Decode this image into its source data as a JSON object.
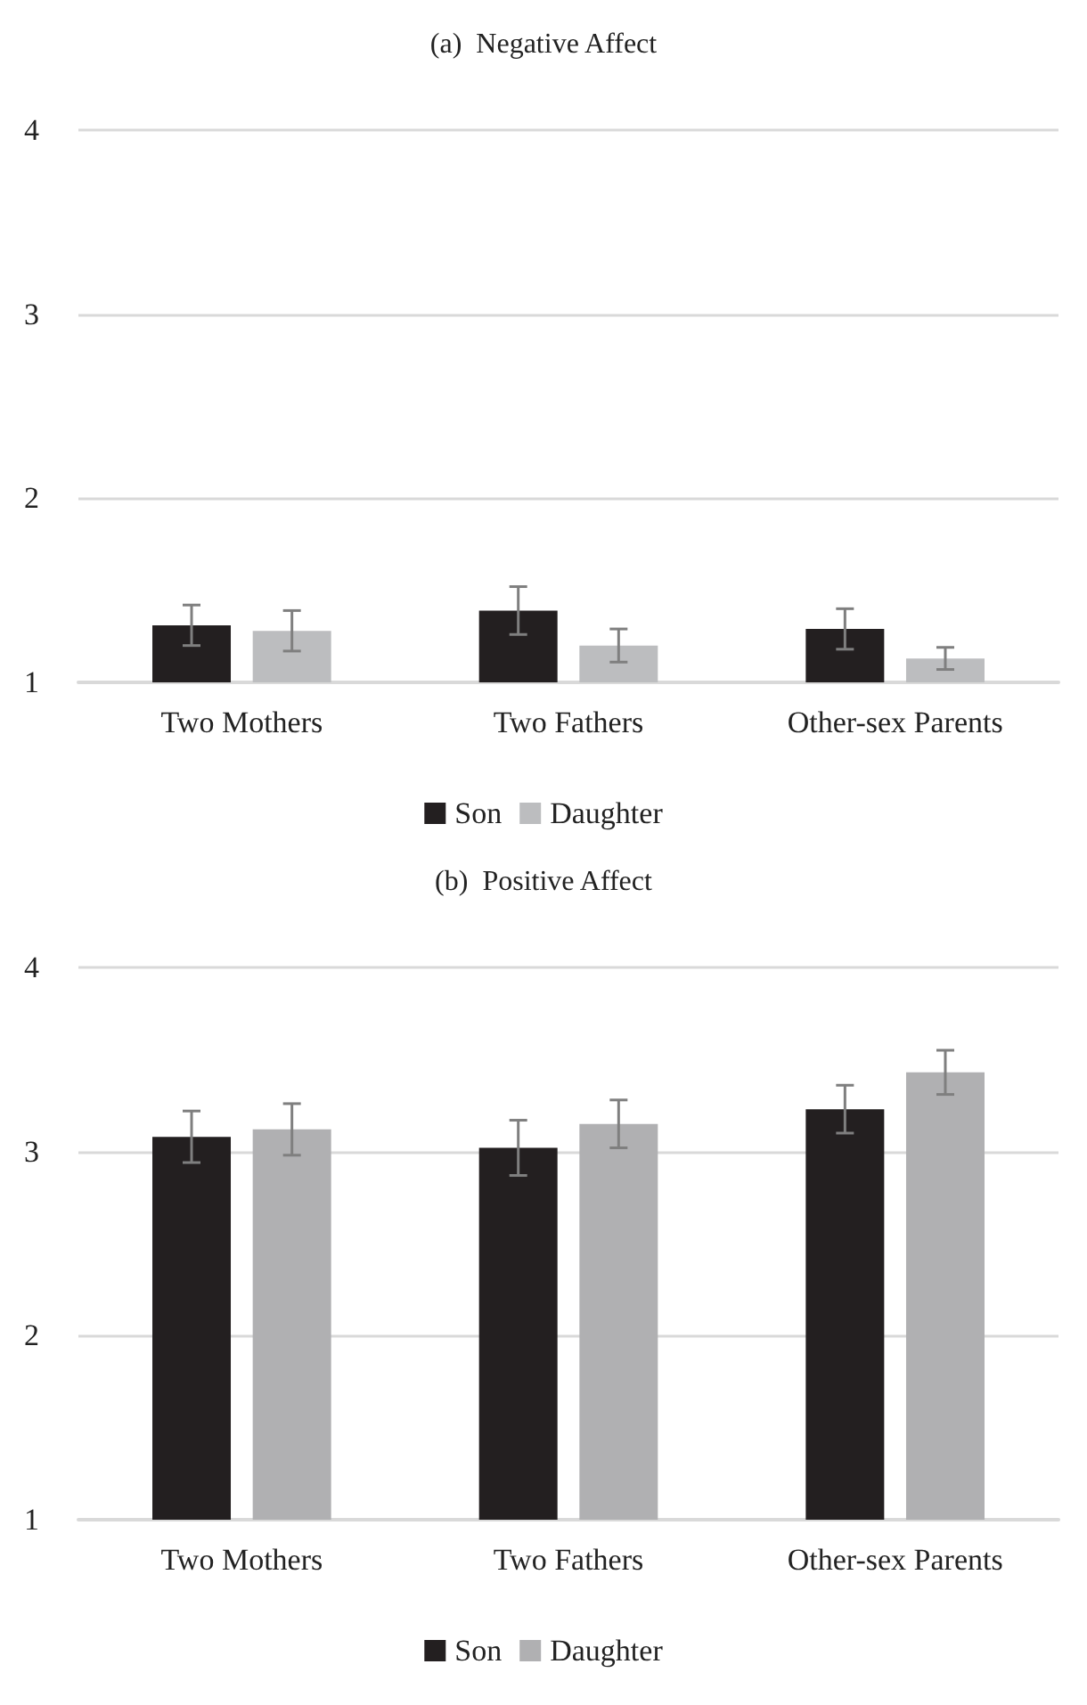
{
  "chart_data": [
    {
      "type": "bar",
      "title": "(a)  Negative Affect",
      "categories": [
        "Two Mothers",
        "Two Fathers",
        "Other-sex Parents"
      ],
      "series": [
        {
          "name": "Son",
          "color": "#231f20",
          "values": [
            1.31,
            1.39,
            1.29
          ],
          "errors": [
            0.11,
            0.13,
            0.11
          ]
        },
        {
          "name": "Daughter",
          "color": "#bcbdbf",
          "values": [
            1.28,
            1.2,
            1.13
          ],
          "errors": [
            0.11,
            0.09,
            0.06
          ]
        }
      ],
      "ylim": [
        1,
        4
      ],
      "yticks": [
        1,
        2,
        3,
        4
      ],
      "grid": "y",
      "legend": "bottom"
    },
    {
      "type": "bar",
      "title": "(b)  Positive Affect",
      "categories": [
        "Two Mothers",
        "Two Fathers",
        "Other-sex Parents"
      ],
      "series": [
        {
          "name": "Son",
          "color": "#231f20",
          "values": [
            3.08,
            3.02,
            3.23
          ],
          "errors": [
            0.14,
            0.15,
            0.13
          ]
        },
        {
          "name": "Daughter",
          "color": "#b0b0b2",
          "values": [
            3.12,
            3.15,
            3.43
          ],
          "errors": [
            0.14,
            0.13,
            0.12
          ]
        }
      ],
      "ylim": [
        1,
        4
      ],
      "yticks": [
        1,
        2,
        3,
        4
      ],
      "grid": "y",
      "legend": "bottom"
    }
  ]
}
